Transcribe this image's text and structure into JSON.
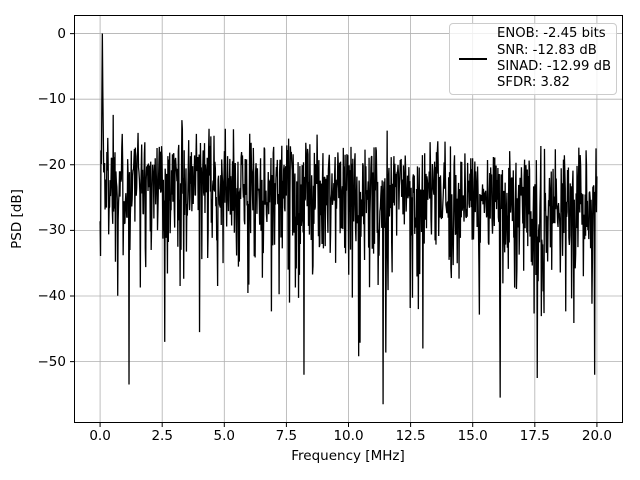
{
  "figure": {
    "background": "#ffffff"
  },
  "chart_data": {
    "type": "line",
    "title": "",
    "xlabel": "Frequency [MHz]",
    "ylabel": "PSD [dB]",
    "xlim": [
      -1.05,
      21.05
    ],
    "ylim": [
      -59.36,
      2.83
    ],
    "xticks": [
      0,
      2.5,
      5,
      7.5,
      10,
      12.5,
      15,
      17.5,
      20
    ],
    "xtick_labels": [
      "0.0",
      "2.5",
      "5.0",
      "7.5",
      "10.0",
      "12.5",
      "15.0",
      "17.5",
      "20.0"
    ],
    "yticks": [
      0,
      -10,
      -20,
      -30,
      -40,
      -50
    ],
    "ytick_labels": [
      "0",
      "−10",
      "−20",
      "−30",
      "−40",
      "−50"
    ],
    "grid": true,
    "grid_color": "#b0b0b0",
    "axis_color": "#000000",
    "line_width": 1.3,
    "legend": {
      "position": "upper right",
      "handle_color": "#000000",
      "lines": [
        "ENOB: -2.45 bits",
        "SNR: -12.83 dB",
        "SINAD: -12.99 dB",
        "SFDR: 3.82"
      ]
    },
    "series": [
      {
        "name": "PSD",
        "color": "#000000",
        "freq_range_mhz": [
          0,
          20
        ],
        "n_bins": 1100,
        "seed": 1337,
        "signal_peak": {
          "freq_mhz": 0.1,
          "db": 0
        },
        "dc_db": -28.6,
        "near_dc_db": -33.9,
        "noise_base_db": [
          [
            0,
            -20.0
          ],
          [
            2.5,
            -20.8
          ],
          [
            5,
            -21.5
          ],
          [
            7.5,
            -22.1
          ],
          [
            10,
            -22.7
          ],
          [
            12.5,
            -23.2
          ],
          [
            15,
            -23.7
          ],
          [
            17.5,
            -24.1
          ],
          [
            20,
            -24.5
          ]
        ],
        "noise_rel_clamp": [
          -33,
          7
        ],
        "deep_notches": [
          [
            1.16,
            -53.5
          ],
          [
            2.6,
            -47.0
          ],
          [
            4.0,
            -45.5
          ],
          [
            8.2,
            -52.0
          ],
          [
            11.4,
            -56.5
          ],
          [
            13.0,
            -48.0
          ],
          [
            16.1,
            -55.5
          ],
          [
            17.6,
            -52.5
          ],
          [
            19.9,
            -52.0
          ]
        ],
        "spurs": [
          [
            0.52,
            -12.4
          ],
          [
            3.3,
            -13.2
          ],
          [
            11.55,
            -14.8
          ]
        ]
      }
    ]
  }
}
